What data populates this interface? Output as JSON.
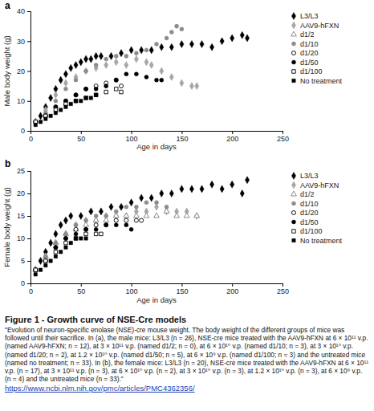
{
  "chart_data": [
    {
      "type": "scatter",
      "title": "a",
      "x_label": "Age in days",
      "y_label": "Male body weight (g)",
      "xlim": [
        0,
        250
      ],
      "xticks": [
        0,
        50,
        100,
        150,
        200,
        250
      ],
      "ylim": [
        0,
        40
      ],
      "yticks": [
        0,
        10,
        20,
        30,
        40
      ],
      "grid": false,
      "legend": "right",
      "series": [
        {
          "name": "L3/L3",
          "color": "#000000",
          "marker": "diamond",
          "x": [
            5,
            10,
            15,
            20,
            25,
            30,
            35,
            40,
            45,
            50,
            55,
            60,
            65,
            70,
            80,
            90,
            100,
            110,
            120,
            130,
            140,
            150,
            160,
            170,
            180,
            190,
            200,
            210,
            215
          ],
          "values": [
            3,
            5,
            8,
            11,
            14,
            17,
            19,
            21,
            22,
            23,
            24,
            24,
            25,
            25,
            25,
            26,
            27,
            27,
            27,
            28,
            28,
            29,
            29,
            29,
            28,
            30,
            31,
            32,
            31
          ]
        },
        {
          "name": "AAV9-hFXN",
          "color": "#a6a6a6",
          "marker": "diamond",
          "x": [
            5,
            15,
            25,
            35,
            45,
            55,
            65,
            75,
            85,
            95,
            105,
            115,
            120,
            130,
            140,
            150,
            160,
            165
          ],
          "values": [
            3,
            7,
            12,
            16,
            18,
            20,
            21,
            22,
            23,
            22,
            24,
            23,
            22,
            20,
            18,
            16,
            15,
            15
          ]
        },
        {
          "name": "d1/2",
          "color": "#7f7f7f",
          "marker": "triangle-open",
          "x": [],
          "values": []
        },
        {
          "name": "d1/10",
          "color": "#8c8c8c",
          "marker": "circle",
          "x": [
            5,
            15,
            25,
            35,
            45,
            55,
            65,
            75,
            85,
            95,
            105,
            115,
            125,
            135,
            140,
            145,
            150
          ],
          "values": [
            3,
            6,
            10,
            14,
            17,
            20,
            22,
            24,
            25,
            25,
            26,
            27,
            29,
            31,
            33,
            35,
            34
          ]
        },
        {
          "name": "d1/20",
          "color": "#000000",
          "marker": "circle-open",
          "x": [
            5,
            15,
            25,
            35,
            45,
            55,
            65,
            75,
            85,
            90
          ],
          "values": [
            3,
            5,
            8,
            10,
            12,
            14,
            15,
            16,
            17,
            15
          ]
        },
        {
          "name": "d1/50",
          "color": "#000000",
          "marker": "circle",
          "x": [
            5,
            15,
            25,
            35,
            45,
            55,
            65,
            75,
            85,
            95,
            105,
            115,
            125,
            130
          ],
          "values": [
            3,
            5,
            8,
            10,
            12,
            14,
            14,
            15,
            17,
            19,
            19,
            18,
            17,
            17
          ]
        },
        {
          "name": "d1/100",
          "color": "#000000",
          "marker": "square-open",
          "x": [
            5,
            15,
            25,
            35,
            45,
            55,
            65,
            75,
            85,
            90
          ],
          "values": [
            3,
            5,
            7,
            9,
            10,
            11,
            12,
            13,
            14,
            13
          ]
        },
        {
          "name": "No treatment",
          "color": "#000000",
          "marker": "square",
          "x": [
            5,
            10,
            15,
            20,
            25,
            30,
            35,
            40,
            45,
            50,
            55,
            60,
            65
          ],
          "values": [
            2,
            3,
            4,
            5,
            6,
            7,
            8,
            9,
            10,
            10,
            11,
            11,
            12
          ]
        }
      ]
    },
    {
      "type": "scatter",
      "title": "b",
      "x_label": "Age in days",
      "y_label": "Female body weight (g)",
      "xlim": [
        0,
        250
      ],
      "xticks": [
        0,
        50,
        100,
        150,
        200,
        250
      ],
      "ylim": [
        0,
        25
      ],
      "yticks": [
        0,
        5,
        10,
        15,
        20,
        25
      ],
      "grid": false,
      "legend": "right",
      "series": [
        {
          "name": "L3/L3",
          "color": "#000000",
          "marker": "diamond",
          "x": [
            5,
            10,
            15,
            20,
            25,
            30,
            35,
            40,
            50,
            60,
            70,
            80,
            90,
            100,
            110,
            120,
            130,
            140,
            150,
            160,
            170,
            180,
            190,
            200,
            210,
            215
          ],
          "values": [
            3,
            5,
            7,
            9,
            11,
            13,
            14,
            15,
            15,
            16,
            16,
            17,
            17,
            18,
            19,
            19,
            20,
            20,
            21,
            21,
            21,
            22,
            21,
            22,
            20,
            23
          ]
        },
        {
          "name": "AAV9-hFXN",
          "color": "#a6a6a6",
          "marker": "diamond",
          "x": [
            5,
            15,
            25,
            35,
            45,
            55,
            65,
            75,
            85,
            95,
            105,
            115,
            125,
            135,
            145,
            155,
            165
          ],
          "values": [
            3,
            6,
            9,
            11,
            13,
            14,
            14,
            15,
            15,
            15,
            16,
            16,
            17,
            16,
            16,
            16,
            15
          ]
        },
        {
          "name": "d1/2",
          "color": "#7f7f7f",
          "marker": "triangle-open",
          "x": [
            5,
            15,
            25,
            35,
            45,
            55,
            65,
            75,
            85,
            95,
            105,
            115,
            125,
            135,
            145,
            155,
            165
          ],
          "values": [
            3,
            6,
            9,
            11,
            12,
            13,
            14,
            14,
            15,
            15,
            15,
            15,
            15,
            16,
            15,
            15,
            15
          ]
        },
        {
          "name": "d1/10",
          "color": "#8c8c8c",
          "marker": "circle",
          "x": [
            5,
            15,
            25,
            35,
            45,
            55,
            65,
            75,
            85,
            95,
            105,
            115,
            125,
            135
          ],
          "values": [
            3,
            6,
            9,
            11,
            13,
            14,
            15,
            15,
            16,
            17,
            17,
            18,
            18,
            17
          ]
        },
        {
          "name": "d1/20",
          "color": "#000000",
          "marker": "circle-open",
          "x": [
            5,
            15,
            25,
            35,
            45,
            55,
            65,
            75,
            85,
            95,
            105,
            110
          ],
          "values": [
            3,
            5,
            8,
            10,
            12,
            12,
            13,
            13,
            14,
            14,
            14,
            14
          ]
        },
        {
          "name": "d1/50",
          "color": "#000000",
          "marker": "circle",
          "x": [
            5,
            15,
            25,
            35,
            45,
            55,
            65,
            75,
            85,
            95,
            100
          ],
          "values": [
            3,
            5,
            8,
            10,
            11,
            12,
            12,
            13,
            13,
            13,
            12
          ]
        },
        {
          "name": "d1/100",
          "color": "#000000",
          "marker": "square-open",
          "x": [
            5,
            15,
            25,
            35,
            45,
            55,
            65,
            70
          ],
          "values": [
            3,
            5,
            7,
            9,
            10,
            11,
            11,
            11
          ]
        },
        {
          "name": "No treatment",
          "color": "#000000",
          "marker": "square",
          "x": [
            5,
            10,
            15,
            20,
            25,
            30,
            35,
            40,
            45,
            50,
            55
          ],
          "values": [
            2,
            3,
            4,
            5,
            6,
            7,
            8,
            9,
            10,
            10,
            10
          ]
        }
      ]
    }
  ],
  "caption": {
    "title": "Figure 1 - Growth curve of NSE-Cre models",
    "text": "\"Evolution of neuron-specific enolase (NSE)-cre mouse weight. The body weight of the different groups of mice was followed until their sacrifice. In (a), the male mice: L3/L3 (n = 26), NSE-cre mice treated with the AAV9-hFXN at 6 × 10¹¹ v.p. (named AAV9-hFXN; n = 12), at 3 × 10¹¹ v.p. (named d1/2; n = 0), at 6 × 10¹⁰ v.p. (named d1/10; n = 3), at 3 × 10¹⁰ v.p. (named d1/20; n = 2), at 1.2 × 10¹⁰ v.p. (named d1/50; n = 5), at 6 × 10⁹ v.p. (named d1/100; n = 3) and the untreated mice (named no treatment; n = 33). In (b), the female mice: L3/L3 (n = 20), NSE-cre mice treated with the AAV9-hFXN at 6 × 10¹¹ v.p. (n = 17), at 3 × 10¹¹ v.p. (n = 3), at 6 × 10¹⁰ v.p. (n = 2), at 3 × 10¹⁰ v.p. (n = 3), at 1.2 × 10¹⁰ v.p. (n = 3), at 6 × 10⁹ v.p. (n = 4) and the untreated mice (n = 33).\"",
    "url": "https://www.ncbi.nlm.nih.gov/pmc/articles/PMC4362356/"
  }
}
